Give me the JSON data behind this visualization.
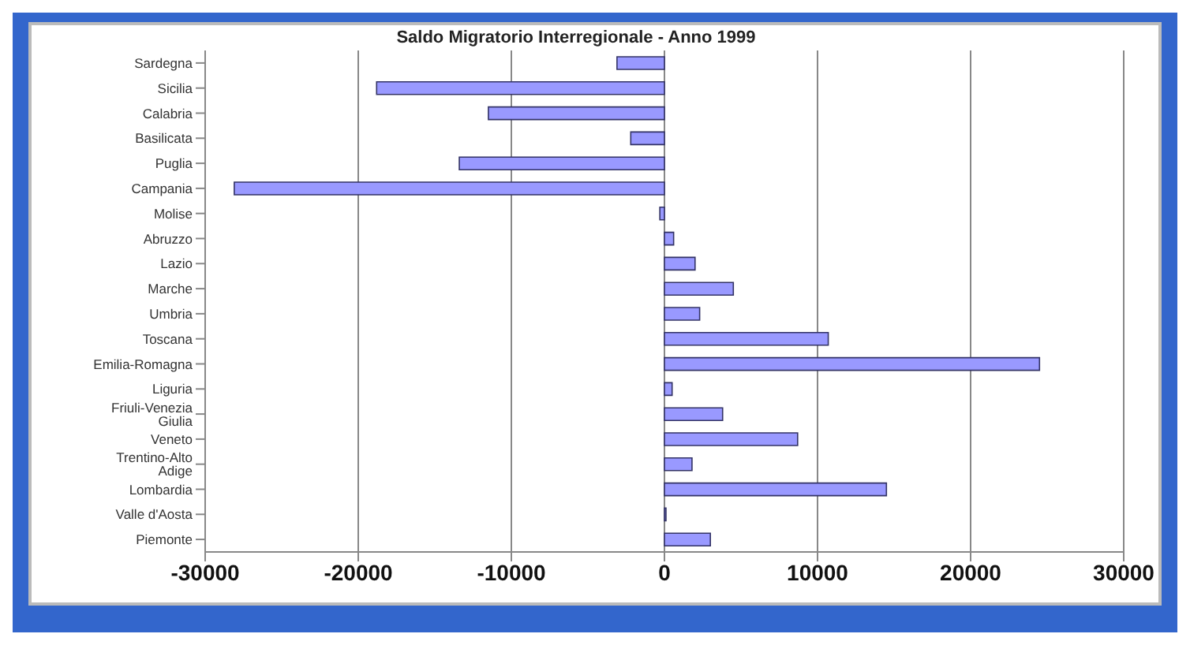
{
  "chart_data": {
    "type": "bar",
    "orientation": "horizontal",
    "title": "Saldo Migratorio Interregionale - Anno 1999",
    "categories": [
      "Sardegna",
      "Sicilia",
      "Calabria",
      "Basilicata",
      "Puglia",
      "Campania",
      "Molise",
      "Abruzzo",
      "Lazio",
      "Marche",
      "Umbria",
      "Toscana",
      "Emilia-Romagna",
      "Liguria",
      "Friuli-Venezia Giulia",
      "Veneto",
      "Trentino-Alto Adige",
      "Lombardia",
      "Valle d'Aosta",
      "Piemonte"
    ],
    "values": [
      -3100,
      -18800,
      -11500,
      -2200,
      -13400,
      -28100,
      -300,
      600,
      2000,
      4500,
      2300,
      10700,
      24500,
      500,
      3800,
      8700,
      1800,
      14500,
      100,
      3000
    ],
    "color": "#9999ff",
    "xlim": [
      -30000,
      30000
    ],
    "xticks": [
      -30000,
      -20000,
      -10000,
      0,
      10000,
      20000,
      30000
    ],
    "grid": "x"
  }
}
